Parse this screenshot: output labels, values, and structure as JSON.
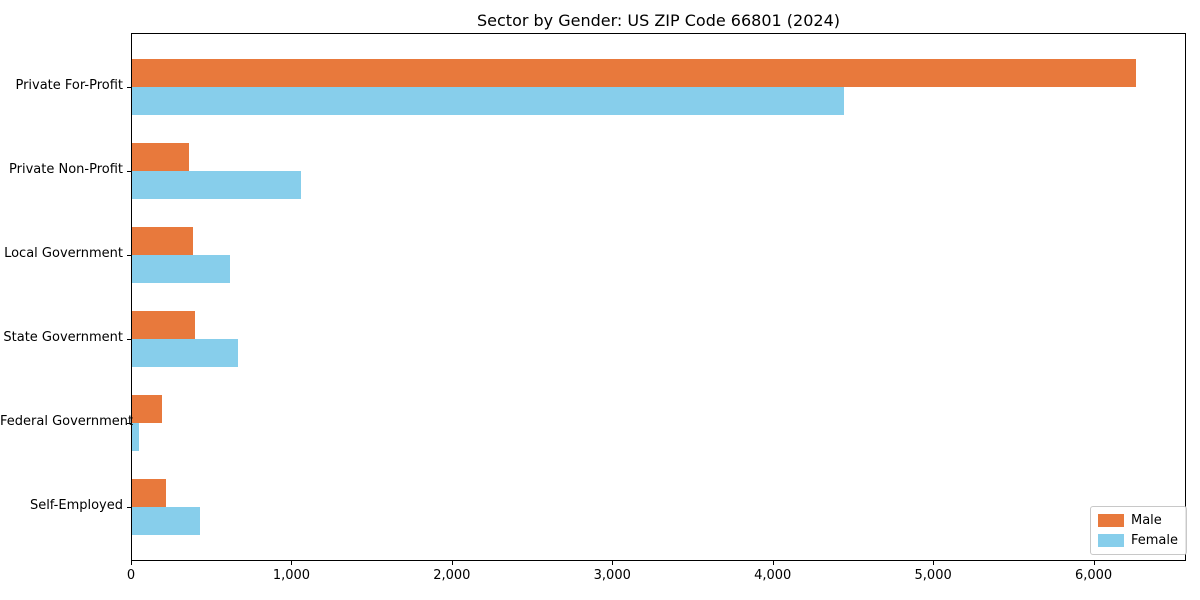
{
  "chart_data": {
    "type": "bar",
    "orientation": "horizontal",
    "title": "Sector by Gender: US ZIP Code 66801 (2024)",
    "categories": [
      "Private For-Profit",
      "Private Non-Profit",
      "Local Government",
      "State Government",
      "Federal Government",
      "Self-Employed"
    ],
    "series": [
      {
        "name": "Male",
        "color": "#E8793C",
        "values": [
          6265,
          355,
          380,
          395,
          190,
          215
        ]
      },
      {
        "name": "Female",
        "color": "#87CEEB",
        "values": [
          4445,
          1055,
          610,
          660,
          45,
          425
        ]
      }
    ],
    "xlim": [
      0,
      6570
    ],
    "xticks": [
      0,
      1000,
      2000,
      3000,
      4000,
      5000,
      6000
    ],
    "xtick_labels": [
      "0",
      "1,000",
      "2,000",
      "3,000",
      "4,000",
      "5,000",
      "6,000"
    ],
    "grid": false,
    "legend": {
      "position": "lower right",
      "entries": [
        "Male",
        "Female"
      ]
    },
    "axis_color": "#000000",
    "legend_border_color": "#c8c8c8",
    "background_color": "#ffffff"
  }
}
